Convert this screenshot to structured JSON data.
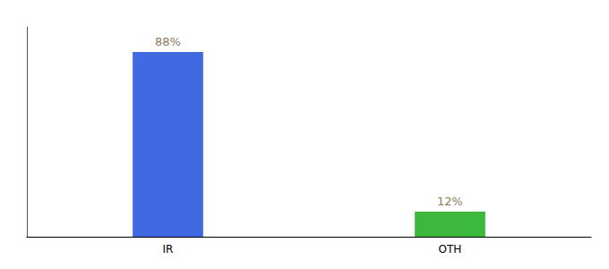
{
  "chart_data": {
    "type": "bar",
    "categories": [
      "IR",
      "OTH"
    ],
    "values": [
      88,
      12
    ],
    "value_labels": [
      "88%",
      "12%"
    ],
    "colors": [
      "#4169e1",
      "#3cb83c"
    ],
    "ylim": [
      0,
      100
    ],
    "tick_labels": "x",
    "data_labels": true,
    "grid": false
  }
}
